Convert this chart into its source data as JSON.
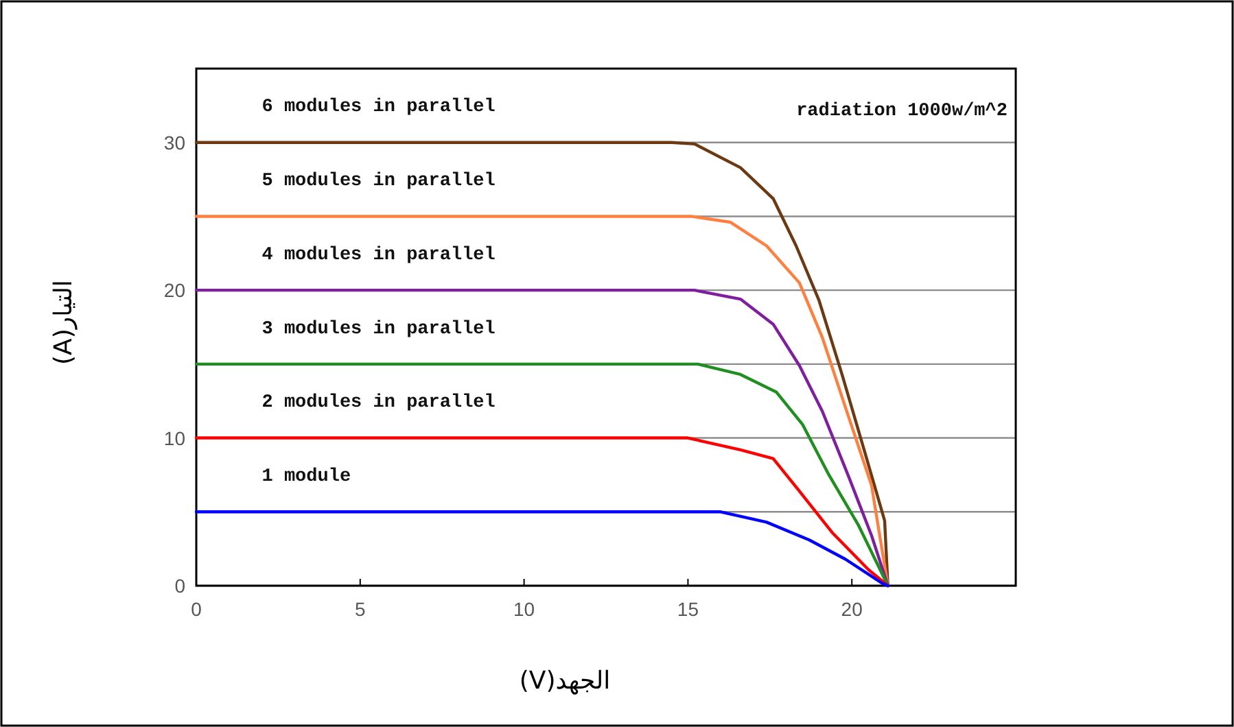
{
  "chart_data": {
    "type": "line",
    "xlabel": "الجهد(V)",
    "ylabel": "التيار(A)",
    "annotations": [
      "radiation 1000w/m^2"
    ],
    "xlim": [
      0,
      25
    ],
    "ylim": [
      0,
      35
    ],
    "xticks": [
      0,
      5,
      10,
      15,
      20
    ],
    "yticks": [
      0,
      {
        "value": 5,
        "label": null
      },
      10,
      {
        "value": 15,
        "label": null
      },
      20,
      {
        "value": 25,
        "label": null
      },
      30
    ],
    "grid": "y",
    "legend": false,
    "marker": "none",
    "line_style": "solid",
    "series": [
      {
        "name": "6 modules in parallel",
        "color": "#6b3a12",
        "x": [
          0,
          14.5,
          15.2,
          16.6,
          17.6,
          18.3,
          19.0,
          19.7,
          20.4,
          21.0,
          21.1
        ],
        "values": [
          30,
          30,
          29.9,
          28.3,
          26.2,
          23.0,
          19.3,
          14.3,
          9.0,
          4.4,
          0
        ]
      },
      {
        "name": "5 modules in parallel",
        "color": "#ff7f3f",
        "x": [
          0,
          15.1,
          16.3,
          17.4,
          18.4,
          19.1,
          19.8,
          20.6,
          21.1
        ],
        "values": [
          25,
          25,
          24.6,
          23.0,
          20.5,
          16.8,
          12.1,
          6.8,
          0
        ]
      },
      {
        "name": "4 modules in parallel",
        "color": "#7f1f9f",
        "x": [
          0,
          15.2,
          16.6,
          17.6,
          18.4,
          19.1,
          19.9,
          20.6,
          21.1
        ],
        "values": [
          20,
          20,
          19.4,
          17.7,
          14.9,
          11.8,
          7.4,
          3.4,
          0
        ]
      },
      {
        "name": "3 modules in parallel",
        "color": "#1f8f1f",
        "x": [
          0,
          15.3,
          16.6,
          17.7,
          18.5,
          19.3,
          20.2,
          21.1
        ],
        "values": [
          15,
          15,
          14.3,
          13.1,
          10.9,
          7.5,
          4.1,
          0
        ]
      },
      {
        "name": "2 modules in parallel",
        "color": "#ff0000",
        "x": [
          0,
          15.0,
          16.6,
          17.6,
          18.4,
          19.4,
          20.5,
          21.1
        ],
        "values": [
          10,
          10,
          9.2,
          8.6,
          6.4,
          3.6,
          1.1,
          0
        ]
      },
      {
        "name": "1 module",
        "color": "#0000ff",
        "x": [
          0,
          16.0,
          17.4,
          18.7,
          19.8,
          20.9,
          21.1
        ],
        "values": [
          5,
          5,
          4.3,
          3.1,
          1.8,
          0.2,
          0
        ]
      }
    ]
  }
}
